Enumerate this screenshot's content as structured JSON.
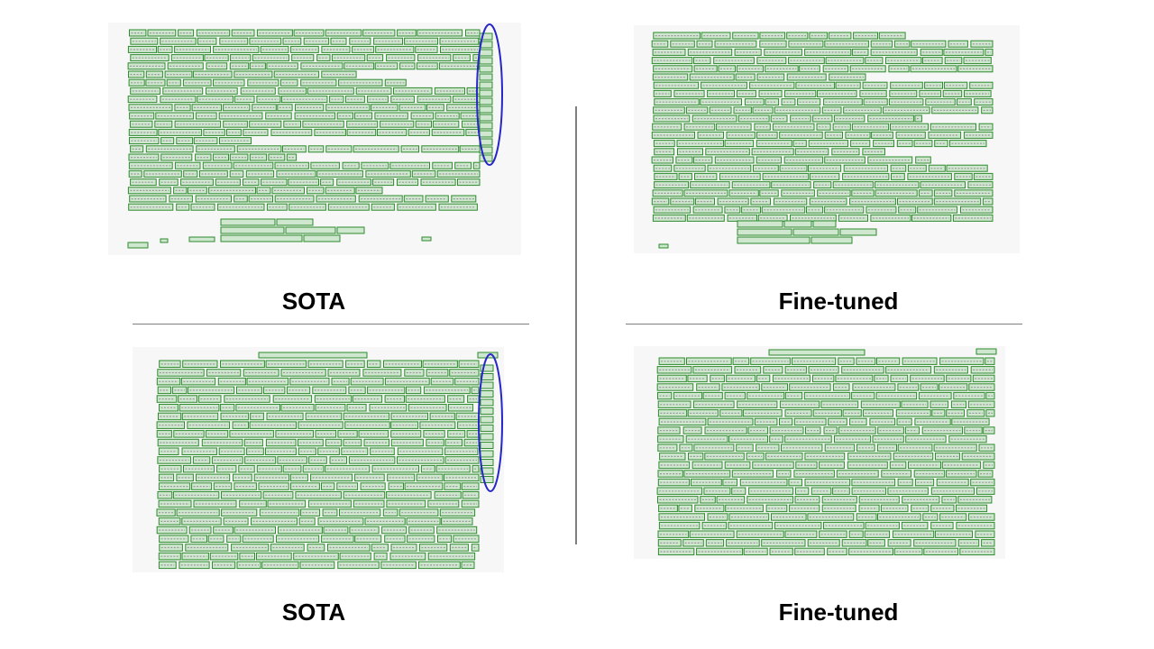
{
  "panels": [
    {
      "id": "sota-top",
      "label": "SOTA",
      "highlight_margin": true
    },
    {
      "id": "finetuned-top",
      "label": "Fine-tuned",
      "highlight_margin": false
    },
    {
      "id": "sota-bottom",
      "label": "SOTA",
      "highlight_margin": true
    },
    {
      "id": "finetuned-bottom",
      "label": "Fine-tuned",
      "highlight_margin": false
    }
  ],
  "colors": {
    "box_stroke": "#2e8b2e",
    "box_fill": "#cfe6cf",
    "highlight_ellipse": "#2626c9",
    "divider": "#7f7f7f",
    "paper": "#f7f7f7"
  }
}
